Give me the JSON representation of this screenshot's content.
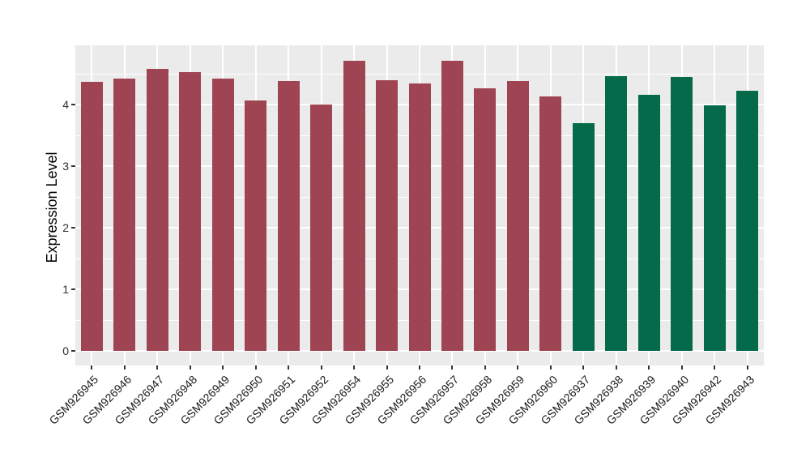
{
  "figure": {
    "background": "#FFFFFF",
    "panel_background": "#EBEBEB",
    "grid_color": "#FFFFFF",
    "axis_text_color": "#303030",
    "axis_title_color": "#000000",
    "tick_color": "#333333"
  },
  "chart_data": {
    "type": "bar",
    "title": "",
    "xlabel": "",
    "ylabel": "Expression Level",
    "categories": [
      "GSM926945",
      "GSM926946",
      "GSM926947",
      "GSM926948",
      "GSM926949",
      "GSM926950",
      "GSM926951",
      "GSM926952",
      "GSM926954",
      "GSM926955",
      "GSM926956",
      "GSM926957",
      "GSM926958",
      "GSM926959",
      "GSM926960",
      "GSM926937",
      "GSM926938",
      "GSM926939",
      "GSM926940",
      "GSM926942",
      "GSM926943"
    ],
    "values": [
      4.37,
      4.42,
      4.58,
      4.52,
      4.42,
      4.07,
      4.38,
      4.0,
      4.71,
      4.39,
      4.34,
      4.71,
      4.26,
      4.38,
      4.13,
      3.7,
      4.46,
      4.16,
      4.45,
      3.99,
      4.22
    ],
    "groups": [
      "groupA",
      "groupA",
      "groupA",
      "groupA",
      "groupA",
      "groupA",
      "groupA",
      "groupA",
      "groupA",
      "groupA",
      "groupA",
      "groupA",
      "groupA",
      "groupA",
      "groupA",
      "groupB",
      "groupB",
      "groupB",
      "groupB",
      "groupB",
      "groupB"
    ],
    "group_colors": {
      "groupA": "#9E4452",
      "groupB": "#046A4A"
    },
    "yticks": [
      0,
      1,
      2,
      3,
      4
    ],
    "minor_yticks": [
      0.5,
      1.5,
      2.5,
      3.5,
      4.5
    ],
    "ylim": [
      0,
      4.96
    ],
    "grid": true,
    "legend": "none"
  }
}
